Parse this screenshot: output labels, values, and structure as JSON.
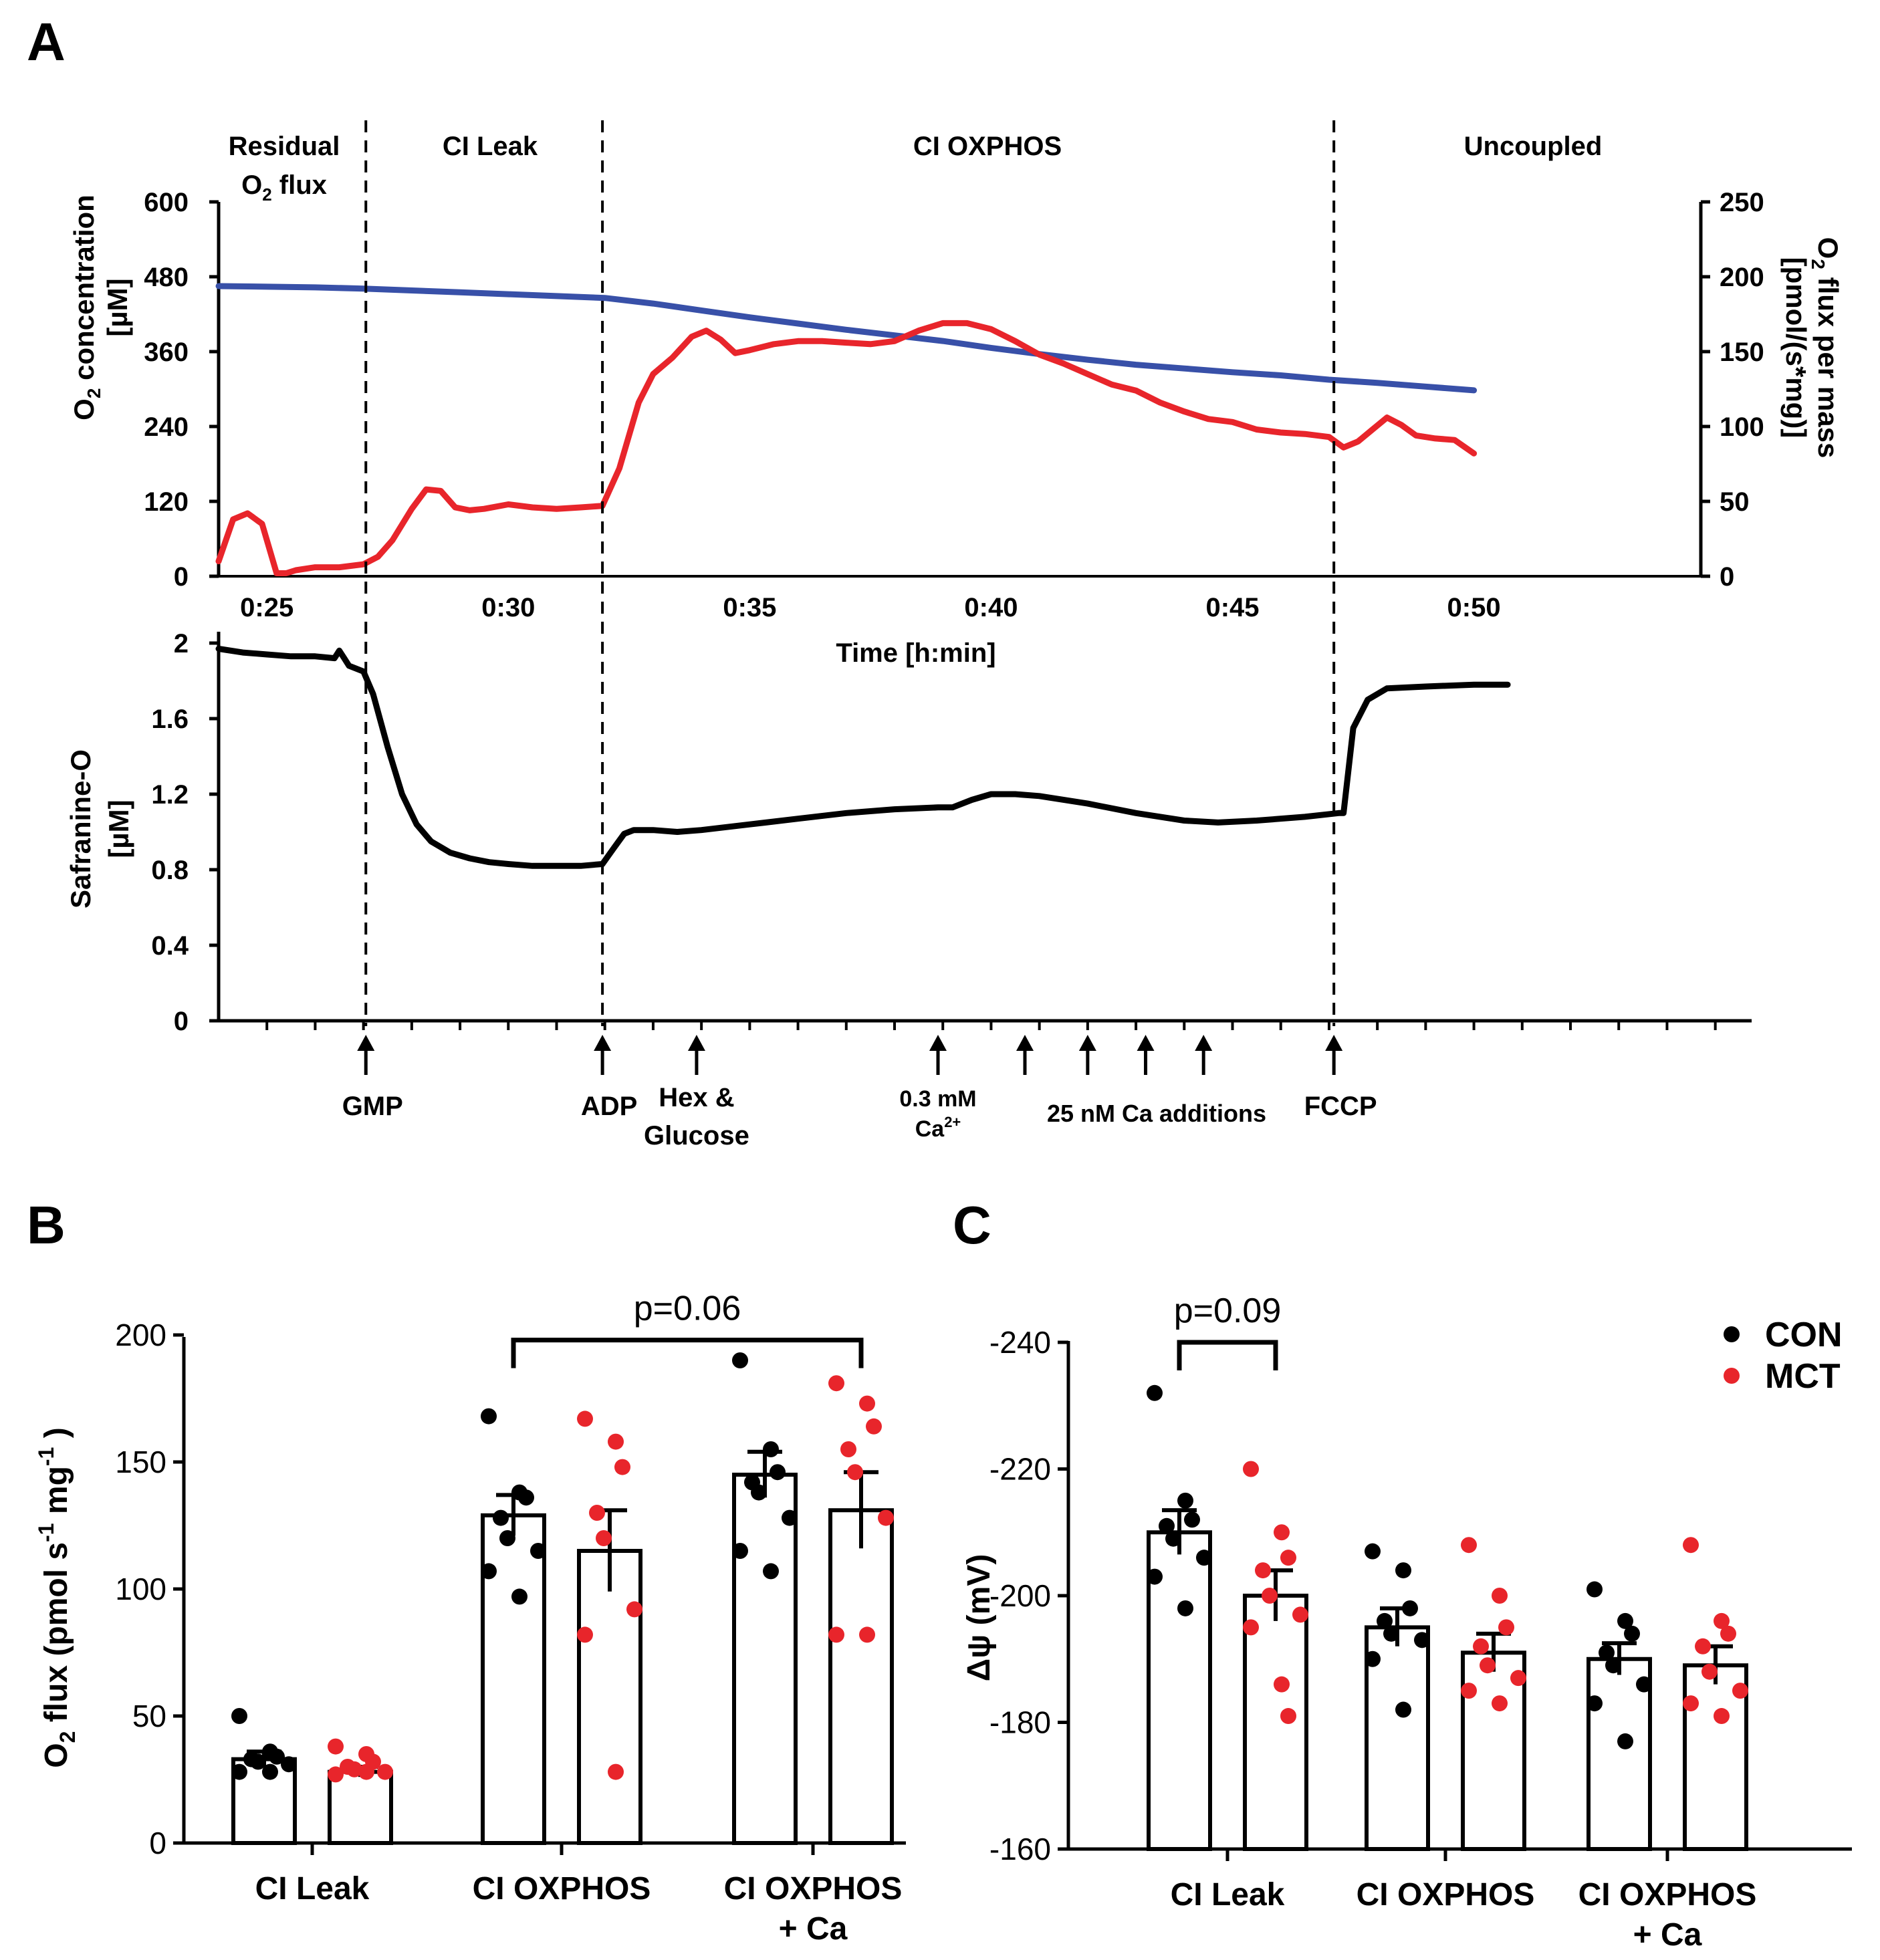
{
  "colors": {
    "blue": "#3850a8",
    "red": "#e8252b",
    "black": "#000000"
  },
  "panel_labels": {
    "a": "A",
    "b": "B",
    "c": "C"
  },
  "chart_data": [
    {
      "id": "A-top",
      "type": "line",
      "phases": [
        {
          "line1": "Residual",
          "line2": "O",
          "sub": "2",
          "after_sub": " flux"
        },
        {
          "line1": "CI Leak"
        },
        {
          "line1": "CI OXPHOS"
        },
        {
          "line1": "Uncoupled"
        }
      ],
      "x_ticks_minutes": [
        25,
        30,
        35,
        40,
        45,
        50
      ],
      "x_tick_labels": [
        "0:25",
        "0:30",
        "0:35",
        "0:40",
        "0:45",
        "0:50"
      ],
      "xlabel": "Time [h:min]",
      "xlim": [
        24.0,
        54.7
      ],
      "phase_boundaries_minutes": [
        27.05,
        31.95,
        47.1
      ],
      "ylabel_left": {
        "pre": "O",
        "sub": "2",
        "post": " concentration",
        "line2": "[µM]"
      },
      "ylabel_right": {
        "pre": "O",
        "sub": "2",
        "post": " flux per mass",
        "line2": "[pmol/(s*mg)]"
      },
      "ylim_left": [
        0,
        600
      ],
      "ylim_right": [
        0,
        250
      ],
      "yticks_left": [
        0,
        120,
        240,
        360,
        480,
        600
      ],
      "yticks_right": [
        0,
        50,
        100,
        150,
        200,
        250
      ],
      "series": [
        {
          "name": "O2 concentration",
          "axis": "left",
          "x": [
            24.0,
            25.0,
            26.0,
            27.0,
            28.0,
            29.0,
            30.0,
            31.0,
            32.0,
            33.0,
            34.0,
            35.0,
            36.0,
            37.0,
            38.0,
            39.0,
            40.0,
            41.0,
            42.0,
            43.0,
            44.0,
            45.0,
            46.0,
            47.0,
            48.0,
            49.0,
            50.0
          ],
          "y": [
            465,
            464,
            463,
            461,
            458,
            455,
            452,
            449,
            446,
            437,
            426,
            415,
            405,
            395,
            386,
            377,
            366,
            356,
            347,
            339,
            333,
            327,
            322,
            315,
            310,
            304,
            298
          ]
        },
        {
          "name": "O2 flux per mass",
          "axis": "right",
          "x": [
            24.0,
            24.3,
            24.6,
            24.9,
            25.2,
            25.4,
            25.6,
            26.0,
            26.5,
            27.0,
            27.3,
            27.6,
            28.0,
            28.3,
            28.6,
            28.9,
            29.2,
            29.5,
            30.0,
            30.5,
            31.0,
            31.5,
            31.95,
            32.3,
            32.7,
            33.0,
            33.4,
            33.8,
            34.1,
            34.4,
            34.7,
            35.0,
            35.5,
            36.0,
            36.5,
            37.0,
            37.5,
            38.0,
            38.5,
            39.0,
            39.5,
            40.0,
            40.5,
            41.0,
            41.5,
            42.0,
            42.5,
            43.0,
            43.5,
            44.0,
            44.5,
            45.0,
            45.5,
            46.0,
            46.5,
            47.0,
            47.3,
            47.6,
            47.9,
            48.2,
            48.5,
            48.8,
            49.2,
            49.6,
            50.0
          ],
          "y": [
            10,
            38,
            42,
            35,
            2,
            2,
            4,
            6,
            6,
            8,
            13,
            24,
            45,
            58,
            57,
            46,
            44,
            45,
            48,
            46,
            45,
            46,
            47,
            72,
            116,
            135,
            146,
            160,
            164,
            158,
            149,
            151,
            155,
            157,
            157,
            156,
            155,
            157,
            164,
            169,
            169,
            165,
            157,
            148,
            142,
            135,
            128,
            124,
            116,
            110,
            105,
            103,
            98,
            96,
            95,
            93,
            86,
            90,
            98,
            106,
            101,
            94,
            92,
            91,
            82
          ]
        }
      ]
    },
    {
      "id": "A-bottom",
      "type": "line",
      "ylabel": "Safranine-O",
      "ylabel2": "[µM]",
      "ylim": [
        0,
        2
      ],
      "yticks": [
        0,
        0.4,
        0.8,
        1.2,
        1.6,
        2
      ],
      "ytick_labels": [
        "0",
        "0.4",
        "0.8",
        "1.2",
        "1.6",
        "2"
      ],
      "xlim": [
        24.0,
        54.7
      ],
      "x": [
        24.0,
        24.5,
        25.0,
        25.5,
        26.0,
        26.4,
        26.5,
        26.6,
        26.7,
        27.0,
        27.2,
        27.5,
        27.8,
        28.1,
        28.4,
        28.8,
        29.2,
        29.6,
        30.0,
        30.5,
        31.0,
        31.5,
        31.95,
        32.2,
        32.4,
        32.6,
        33.0,
        33.5,
        34.0,
        35.0,
        36.0,
        37.0,
        38.0,
        38.9,
        39.2,
        39.6,
        40.0,
        40.5,
        41.0,
        42.0,
        43.0,
        44.0,
        44.7,
        45.5,
        46.5,
        47.2,
        47.3,
        47.5,
        47.8,
        48.2,
        49.0,
        50.0,
        50.7
      ],
      "y": [
        1.97,
        1.95,
        1.94,
        1.93,
        1.93,
        1.92,
        1.96,
        1.92,
        1.88,
        1.85,
        1.73,
        1.45,
        1.2,
        1.04,
        0.95,
        0.89,
        0.86,
        0.84,
        0.83,
        0.82,
        0.82,
        0.82,
        0.83,
        0.92,
        0.99,
        1.01,
        1.01,
        1.0,
        1.01,
        1.04,
        1.07,
        1.1,
        1.12,
        1.13,
        1.13,
        1.17,
        1.2,
        1.2,
        1.19,
        1.15,
        1.1,
        1.06,
        1.05,
        1.06,
        1.08,
        1.1,
        1.1,
        1.55,
        1.7,
        1.76,
        1.77,
        1.78,
        1.78
      ],
      "additions": [
        {
          "x": 27.05,
          "label": "GMP"
        },
        {
          "x": 31.95,
          "label": "ADP"
        },
        {
          "x": 33.9,
          "label": "Hex &",
          "label2": "Glucose"
        },
        {
          "x": 38.9,
          "label": "0.3 mM",
          "label2": "Ca",
          "sup": "2+"
        },
        {
          "x": 40.7,
          "label": ""
        },
        {
          "x": 42.0,
          "label": ""
        },
        {
          "x": 43.2,
          "label": ""
        },
        {
          "x": 44.4,
          "label": ""
        },
        {
          "x": 47.1,
          "label": "FCCP"
        }
      ],
      "ca_additions_label": "25 nM Ca additions"
    },
    {
      "id": "B",
      "type": "bar",
      "ylabel": {
        "pre": "O",
        "sub": "2",
        "mid": "  flux (pmol s",
        "sup1": "-1",
        "mid2": " mg",
        "sup2": "-1",
        "post": " )"
      },
      "ylim": [
        0,
        200
      ],
      "yticks": [
        0,
        50,
        100,
        150,
        200
      ],
      "categories": [
        {
          "line1": "CI Leak"
        },
        {
          "line1": "CI OXPHOS"
        },
        {
          "line1": "CI OXPHOS",
          "line2": "+ Ca"
        }
      ],
      "series": [
        {
          "name": "CON",
          "values": [
            33,
            129,
            145
          ],
          "sem": [
            3,
            8,
            9
          ],
          "points": [
            [
              50,
              36,
              34,
              33,
              32,
              31,
              28,
              28
            ],
            [
              168,
              138,
              136,
              128,
              120,
              115,
              107,
              97
            ],
            [
              190,
              155,
              146,
              142,
              138,
              128,
              115,
              107
            ]
          ]
        },
        {
          "name": "MCT",
          "values": [
            28,
            115,
            131
          ],
          "sem": [
            2,
            16,
            15
          ],
          "points": [
            [
              38,
              35,
              32,
              30,
              29,
              28,
              27,
              28
            ],
            [
              167,
              158,
              148,
              130,
              120,
              92,
              82,
              28
            ],
            [
              181,
              173,
              164,
              155,
              146,
              128,
              82,
              82
            ]
          ]
        }
      ],
      "significance": {
        "label": "p=0.06",
        "from": [
          1,
          "CON"
        ],
        "to": [
          2,
          "MCT"
        ],
        "y": 198
      }
    },
    {
      "id": "C",
      "type": "bar",
      "ylabel": "Δψ  (mV)",
      "ylim": [
        -160,
        -240
      ],
      "yticks": [
        -160,
        -180,
        -200,
        -220,
        -240
      ],
      "categories": [
        {
          "line1": "CI Leak"
        },
        {
          "line1": "CI OXPHOS"
        },
        {
          "line1": "CI OXPHOS",
          "line2": "+ Ca"
        }
      ],
      "series": [
        {
          "name": "CON",
          "values": [
            -210,
            -195,
            -190
          ],
          "sem": [
            3.5,
            3,
            2.5
          ],
          "points": [
            [
              -232,
              -215,
              -212,
              -211,
              -209,
              -206,
              -203,
              -198
            ],
            [
              -207,
              -204,
              -198,
              -196,
              -194,
              -193,
              -190,
              -182
            ],
            [
              -201,
              -196,
              -194,
              -191,
              -189,
              -186,
              -183,
              -177
            ]
          ]
        },
        {
          "name": "MCT",
          "values": [
            -200,
            -191,
            -189
          ],
          "sem": [
            4,
            3,
            3
          ],
          "points": [
            [
              -220,
              -210,
              -206,
              -204,
              -200,
              -197,
              -195,
              -186,
              -181
            ],
            [
              -208,
              -200,
              -195,
              -192,
              -189,
              -187,
              -185,
              -183
            ],
            [
              -208,
              -196,
              -194,
              -192,
              -188,
              -185,
              -183,
              -181
            ]
          ]
        }
      ],
      "significance": {
        "label": "p=0.09",
        "from": [
          0,
          "CON"
        ],
        "to": [
          0,
          "MCT"
        ],
        "y": -240
      },
      "legend": [
        {
          "label": "CON",
          "color": "#000000"
        },
        {
          "label": "MCT",
          "color": "#e8252b"
        }
      ]
    }
  ]
}
